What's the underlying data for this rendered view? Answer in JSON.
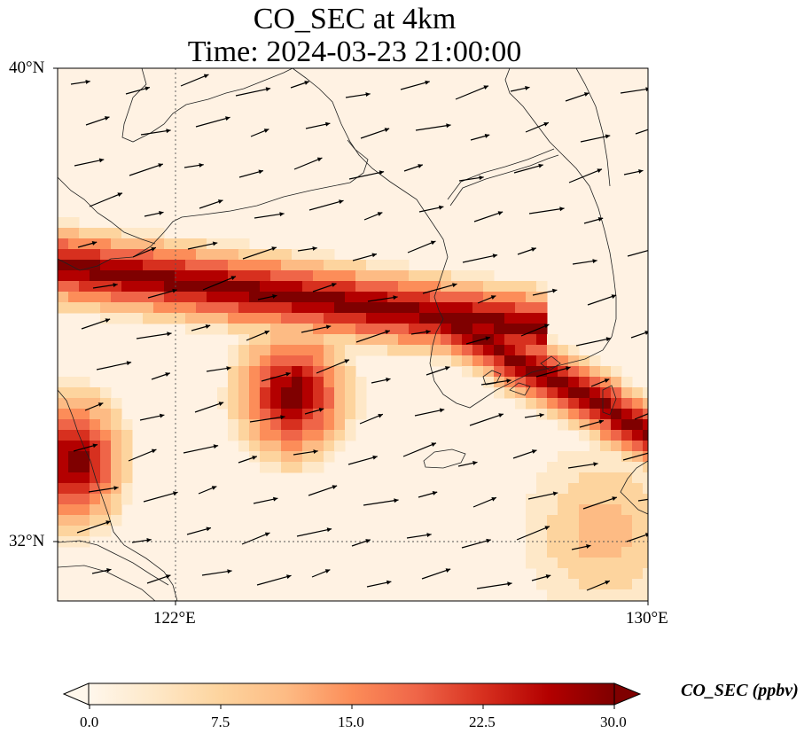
{
  "title": {
    "line1": "CO_SEC at 4km",
    "line2": "Time: 2024-03-23 21:00:00"
  },
  "map": {
    "lon_range": [
      120,
      130
    ],
    "lat_range": [
      31,
      40
    ],
    "lat_ticks": [
      {
        "value": 40,
        "label": "40°N"
      },
      {
        "value": 32,
        "label": "32°N"
      }
    ],
    "lon_ticks": [
      {
        "value": 122,
        "label": "122°E"
      },
      {
        "value": 130,
        "label": "130°E"
      }
    ],
    "gridlines": "dotted at 122°E and 32°N",
    "field_variable": "CO_SEC",
    "colormap": "OrRd",
    "vectors": "wind arrows, predominantly westerly"
  },
  "colorbar": {
    "label": "CO_SEC (ppbv)",
    "min": 0.0,
    "max": 30.0,
    "extend": "both",
    "ticks": [
      "0.0",
      "7.5",
      "15.0",
      "22.5",
      "30.0"
    ],
    "colors": [
      "#fff7ec",
      "#fee8c8",
      "#fdd49e",
      "#fdbb84",
      "#fc8d59",
      "#ef6548",
      "#d7301f",
      "#b30000",
      "#7f0000"
    ]
  }
}
